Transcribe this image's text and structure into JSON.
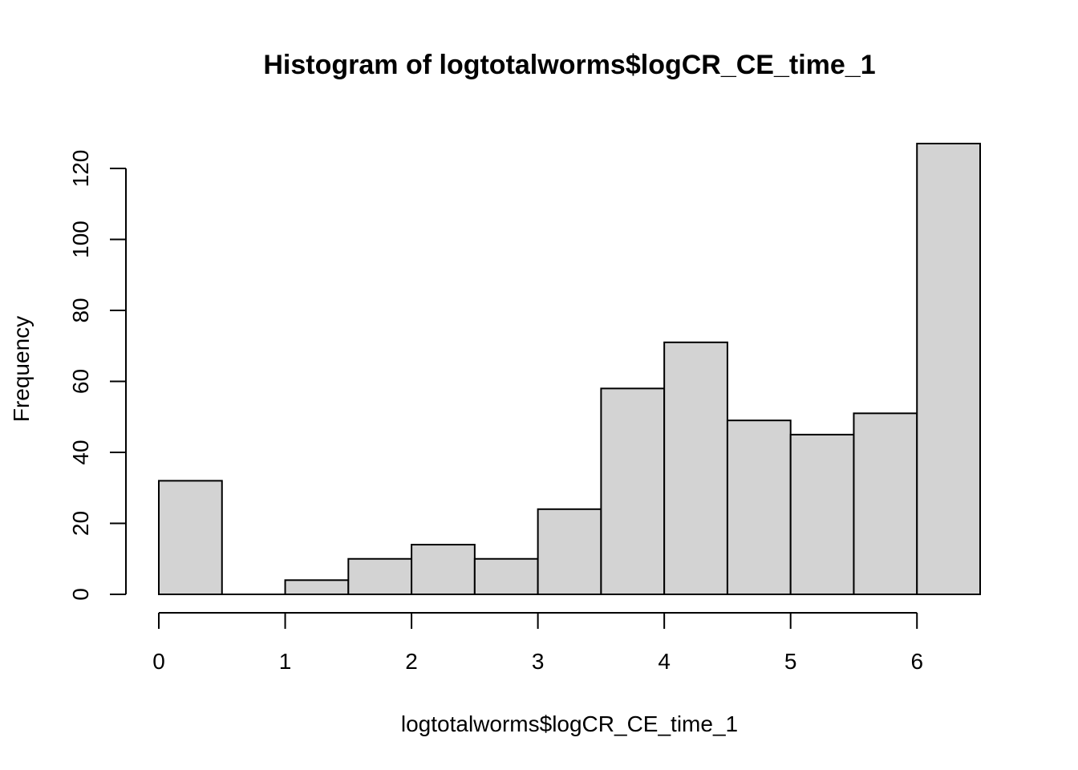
{
  "chart_data": {
    "type": "bar",
    "title": "Histogram of logtotalworms$logCR_CE_time_1",
    "xlabel": "logtotalworms$logCR_CE_time_1",
    "ylabel": "Frequency",
    "bin_edges": [
      0,
      0.5,
      1,
      1.5,
      2,
      2.5,
      3,
      3.5,
      4,
      4.5,
      5,
      5.5,
      6,
      6.5
    ],
    "values": [
      32,
      0,
      4,
      10,
      14,
      10,
      24,
      58,
      71,
      49,
      45,
      51,
      127
    ],
    "xlim": [
      0,
      6.5
    ],
    "ylim": [
      0,
      127
    ],
    "x_ticks": [
      0,
      1,
      2,
      3,
      4,
      5,
      6
    ],
    "y_ticks": [
      0,
      20,
      40,
      60,
      80,
      100,
      120
    ],
    "grid": false,
    "bar_color": "#d3d3d3",
    "edge_color": "#000000"
  }
}
